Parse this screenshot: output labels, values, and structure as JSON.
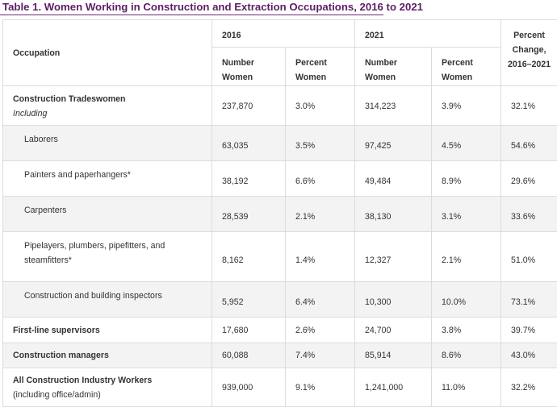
{
  "title": "Table 1. Women Working in Construction and Extraction Occupations, 2016 to 2021",
  "header": {
    "occupation": "Occupation",
    "year1": "2016",
    "year2": "2021",
    "pct_change": "Percent Change, 2016–2021",
    "number_women": "Number Women",
    "percent_women": "Percent Women"
  },
  "rows": [
    {
      "label": "Construction Tradeswomen",
      "sub": "Including",
      "n2016": "237,870",
      "p2016": "3.0%",
      "n2021": "314,223",
      "p2021": "3.9%",
      "change": "32.1%"
    },
    {
      "label": "Laborers",
      "n2016": "63,035",
      "p2016": "3.5%",
      "n2021": "97,425",
      "p2021": "4.5%",
      "change": "54.6%"
    },
    {
      "label": "Painters and paperhangers*",
      "n2016": "38,192",
      "p2016": "6.6%",
      "n2021": "49,484",
      "p2021": "8.9%",
      "change": "29.6%"
    },
    {
      "label": "Carpenters",
      "n2016": "28,539",
      "p2016": "2.1%",
      "n2021": "38,130",
      "p2021": "3.1%",
      "change": "33.6%"
    },
    {
      "label": "Pipelayers, plumbers, pipefitters, and steamfitters*",
      "n2016": "8,162",
      "p2016": "1.4%",
      "n2021": "12,327",
      "p2021": "2.1%",
      "change": "51.0%"
    },
    {
      "label": "Construction and building inspectors",
      "n2016": "5,952",
      "p2016": "6.4%",
      "n2021": "10,300",
      "p2021": "10.0%",
      "change": "73.1%"
    },
    {
      "label": "First-line supervisors",
      "n2016": "17,680",
      "p2016": "2.6%",
      "n2021": "24,700",
      "p2021": "3.8%",
      "change": "39.7%"
    },
    {
      "label": "Construction managers",
      "n2016": "60,088",
      "p2016": "7.4%",
      "n2021": "85,914",
      "p2021": "8.6%",
      "change": "43.0%"
    },
    {
      "label": "All Construction Industry Workers",
      "sub": "(including office/admin)",
      "n2016": "939,000",
      "p2016": "9.1%",
      "n2021": "1,241,000",
      "p2021": "11.0%",
      "change": "32.2%"
    }
  ]
}
